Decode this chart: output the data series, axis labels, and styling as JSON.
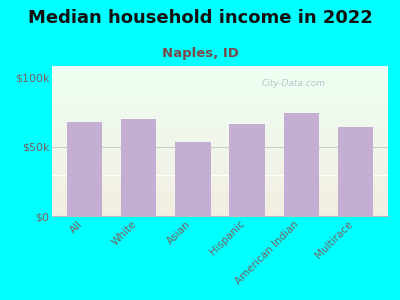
{
  "title": "Median household income in 2022",
  "subtitle": "Naples, ID",
  "categories": [
    "All",
    "White",
    "Asian",
    "Hispanic",
    "American Indian",
    "Multirace"
  ],
  "values": [
    68000,
    70000,
    53000,
    66000,
    74000,
    64000
  ],
  "bar_color": "#c5aed4",
  "background_outer": "#00ffff",
  "yticks": [
    0,
    50000,
    100000
  ],
  "ytick_labels": [
    "$0",
    "$50k",
    "$100k"
  ],
  "ylim": [
    0,
    108000
  ],
  "title_fontsize": 13,
  "subtitle_fontsize": 9.5,
  "subtitle_color": "#7a4a4a",
  "tick_color": "#7a6060",
  "label_color": "#7a6060",
  "watermark": "City-Data.com",
  "bar_width": 0.65,
  "grid_color": "#cccccc",
  "spine_color": "#bbbbbb"
}
